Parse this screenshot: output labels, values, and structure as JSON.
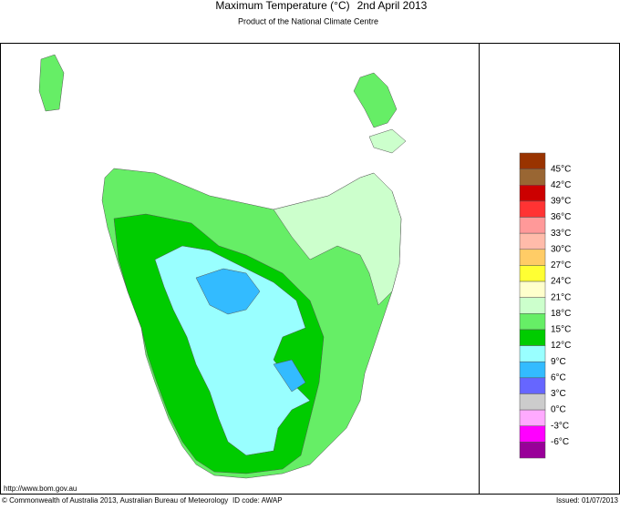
{
  "header": {
    "title": "Maximum Temperature (°C)",
    "date": "2nd April 2013",
    "subtitle": "Product of the National Climate Centre"
  },
  "legend": {
    "labels": [
      "45°C",
      "42°C",
      "39°C",
      "36°C",
      "33°C",
      "30°C",
      "27°C",
      "24°C",
      "21°C",
      "18°C",
      "15°C",
      "12°C",
      "9°C",
      "6°C",
      "3°C",
      "0°C",
      "-3°C",
      "-6°C"
    ],
    "colors": [
      "#993300",
      "#996633",
      "#cc0000",
      "#ff3333",
      "#ff9999",
      "#ffbbaa",
      "#ffcc66",
      "#ffff33",
      "#ffffcc",
      "#ccffcc",
      "#66ee66",
      "#00cc00",
      "#99ffff",
      "#33bbff",
      "#6666ff",
      "#cccccc",
      "#ffaaff",
      "#ff00ff",
      "#990099"
    ]
  },
  "footer": {
    "url": "http://www.bom.gov.au",
    "copyright": "© Commonwealth of Australia 2013, Australian Bureau of Meteorology",
    "id_code": "ID code: AWAP",
    "issued": "Issued: 01/07/2013"
  }
}
